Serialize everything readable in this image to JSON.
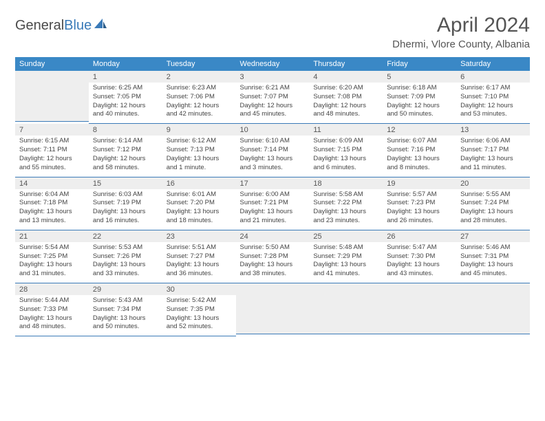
{
  "logo": {
    "text_gray": "General",
    "text_blue": "Blue"
  },
  "title": "April 2024",
  "location": "Dhermi, Vlore County, Albania",
  "colors": {
    "header_bg": "#3a88c6",
    "header_text": "#ffffff",
    "border": "#3a7ab8",
    "daynum_bg": "#eeeeee",
    "text": "#444444"
  },
  "weekdays": [
    "Sunday",
    "Monday",
    "Tuesday",
    "Wednesday",
    "Thursday",
    "Friday",
    "Saturday"
  ],
  "weeks": [
    [
      {
        "day": "",
        "active": false,
        "sunrise": "",
        "sunset": "",
        "daylight1": "",
        "daylight2": ""
      },
      {
        "day": "1",
        "active": true,
        "sunrise": "Sunrise: 6:25 AM",
        "sunset": "Sunset: 7:05 PM",
        "daylight1": "Daylight: 12 hours",
        "daylight2": "and 40 minutes."
      },
      {
        "day": "2",
        "active": true,
        "sunrise": "Sunrise: 6:23 AM",
        "sunset": "Sunset: 7:06 PM",
        "daylight1": "Daylight: 12 hours",
        "daylight2": "and 42 minutes."
      },
      {
        "day": "3",
        "active": true,
        "sunrise": "Sunrise: 6:21 AM",
        "sunset": "Sunset: 7:07 PM",
        "daylight1": "Daylight: 12 hours",
        "daylight2": "and 45 minutes."
      },
      {
        "day": "4",
        "active": true,
        "sunrise": "Sunrise: 6:20 AM",
        "sunset": "Sunset: 7:08 PM",
        "daylight1": "Daylight: 12 hours",
        "daylight2": "and 48 minutes."
      },
      {
        "day": "5",
        "active": true,
        "sunrise": "Sunrise: 6:18 AM",
        "sunset": "Sunset: 7:09 PM",
        "daylight1": "Daylight: 12 hours",
        "daylight2": "and 50 minutes."
      },
      {
        "day": "6",
        "active": true,
        "sunrise": "Sunrise: 6:17 AM",
        "sunset": "Sunset: 7:10 PM",
        "daylight1": "Daylight: 12 hours",
        "daylight2": "and 53 minutes."
      }
    ],
    [
      {
        "day": "7",
        "active": true,
        "sunrise": "Sunrise: 6:15 AM",
        "sunset": "Sunset: 7:11 PM",
        "daylight1": "Daylight: 12 hours",
        "daylight2": "and 55 minutes."
      },
      {
        "day": "8",
        "active": true,
        "sunrise": "Sunrise: 6:14 AM",
        "sunset": "Sunset: 7:12 PM",
        "daylight1": "Daylight: 12 hours",
        "daylight2": "and 58 minutes."
      },
      {
        "day": "9",
        "active": true,
        "sunrise": "Sunrise: 6:12 AM",
        "sunset": "Sunset: 7:13 PM",
        "daylight1": "Daylight: 13 hours",
        "daylight2": "and 1 minute."
      },
      {
        "day": "10",
        "active": true,
        "sunrise": "Sunrise: 6:10 AM",
        "sunset": "Sunset: 7:14 PM",
        "daylight1": "Daylight: 13 hours",
        "daylight2": "and 3 minutes."
      },
      {
        "day": "11",
        "active": true,
        "sunrise": "Sunrise: 6:09 AM",
        "sunset": "Sunset: 7:15 PM",
        "daylight1": "Daylight: 13 hours",
        "daylight2": "and 6 minutes."
      },
      {
        "day": "12",
        "active": true,
        "sunrise": "Sunrise: 6:07 AM",
        "sunset": "Sunset: 7:16 PM",
        "daylight1": "Daylight: 13 hours",
        "daylight2": "and 8 minutes."
      },
      {
        "day": "13",
        "active": true,
        "sunrise": "Sunrise: 6:06 AM",
        "sunset": "Sunset: 7:17 PM",
        "daylight1": "Daylight: 13 hours",
        "daylight2": "and 11 minutes."
      }
    ],
    [
      {
        "day": "14",
        "active": true,
        "sunrise": "Sunrise: 6:04 AM",
        "sunset": "Sunset: 7:18 PM",
        "daylight1": "Daylight: 13 hours",
        "daylight2": "and 13 minutes."
      },
      {
        "day": "15",
        "active": true,
        "sunrise": "Sunrise: 6:03 AM",
        "sunset": "Sunset: 7:19 PM",
        "daylight1": "Daylight: 13 hours",
        "daylight2": "and 16 minutes."
      },
      {
        "day": "16",
        "active": true,
        "sunrise": "Sunrise: 6:01 AM",
        "sunset": "Sunset: 7:20 PM",
        "daylight1": "Daylight: 13 hours",
        "daylight2": "and 18 minutes."
      },
      {
        "day": "17",
        "active": true,
        "sunrise": "Sunrise: 6:00 AM",
        "sunset": "Sunset: 7:21 PM",
        "daylight1": "Daylight: 13 hours",
        "daylight2": "and 21 minutes."
      },
      {
        "day": "18",
        "active": true,
        "sunrise": "Sunrise: 5:58 AM",
        "sunset": "Sunset: 7:22 PM",
        "daylight1": "Daylight: 13 hours",
        "daylight2": "and 23 minutes."
      },
      {
        "day": "19",
        "active": true,
        "sunrise": "Sunrise: 5:57 AM",
        "sunset": "Sunset: 7:23 PM",
        "daylight1": "Daylight: 13 hours",
        "daylight2": "and 26 minutes."
      },
      {
        "day": "20",
        "active": true,
        "sunrise": "Sunrise: 5:55 AM",
        "sunset": "Sunset: 7:24 PM",
        "daylight1": "Daylight: 13 hours",
        "daylight2": "and 28 minutes."
      }
    ],
    [
      {
        "day": "21",
        "active": true,
        "sunrise": "Sunrise: 5:54 AM",
        "sunset": "Sunset: 7:25 PM",
        "daylight1": "Daylight: 13 hours",
        "daylight2": "and 31 minutes."
      },
      {
        "day": "22",
        "active": true,
        "sunrise": "Sunrise: 5:53 AM",
        "sunset": "Sunset: 7:26 PM",
        "daylight1": "Daylight: 13 hours",
        "daylight2": "and 33 minutes."
      },
      {
        "day": "23",
        "active": true,
        "sunrise": "Sunrise: 5:51 AM",
        "sunset": "Sunset: 7:27 PM",
        "daylight1": "Daylight: 13 hours",
        "daylight2": "and 36 minutes."
      },
      {
        "day": "24",
        "active": true,
        "sunrise": "Sunrise: 5:50 AM",
        "sunset": "Sunset: 7:28 PM",
        "daylight1": "Daylight: 13 hours",
        "daylight2": "and 38 minutes."
      },
      {
        "day": "25",
        "active": true,
        "sunrise": "Sunrise: 5:48 AM",
        "sunset": "Sunset: 7:29 PM",
        "daylight1": "Daylight: 13 hours",
        "daylight2": "and 41 minutes."
      },
      {
        "day": "26",
        "active": true,
        "sunrise": "Sunrise: 5:47 AM",
        "sunset": "Sunset: 7:30 PM",
        "daylight1": "Daylight: 13 hours",
        "daylight2": "and 43 minutes."
      },
      {
        "day": "27",
        "active": true,
        "sunrise": "Sunrise: 5:46 AM",
        "sunset": "Sunset: 7:31 PM",
        "daylight1": "Daylight: 13 hours",
        "daylight2": "and 45 minutes."
      }
    ],
    [
      {
        "day": "28",
        "active": true,
        "sunrise": "Sunrise: 5:44 AM",
        "sunset": "Sunset: 7:33 PM",
        "daylight1": "Daylight: 13 hours",
        "daylight2": "and 48 minutes."
      },
      {
        "day": "29",
        "active": true,
        "sunrise": "Sunrise: 5:43 AM",
        "sunset": "Sunset: 7:34 PM",
        "daylight1": "Daylight: 13 hours",
        "daylight2": "and 50 minutes."
      },
      {
        "day": "30",
        "active": true,
        "sunrise": "Sunrise: 5:42 AM",
        "sunset": "Sunset: 7:35 PM",
        "daylight1": "Daylight: 13 hours",
        "daylight2": "and 52 minutes."
      },
      {
        "day": "",
        "active": false,
        "sunrise": "",
        "sunset": "",
        "daylight1": "",
        "daylight2": ""
      },
      {
        "day": "",
        "active": false,
        "sunrise": "",
        "sunset": "",
        "daylight1": "",
        "daylight2": ""
      },
      {
        "day": "",
        "active": false,
        "sunrise": "",
        "sunset": "",
        "daylight1": "",
        "daylight2": ""
      },
      {
        "day": "",
        "active": false,
        "sunrise": "",
        "sunset": "",
        "daylight1": "",
        "daylight2": ""
      }
    ]
  ]
}
